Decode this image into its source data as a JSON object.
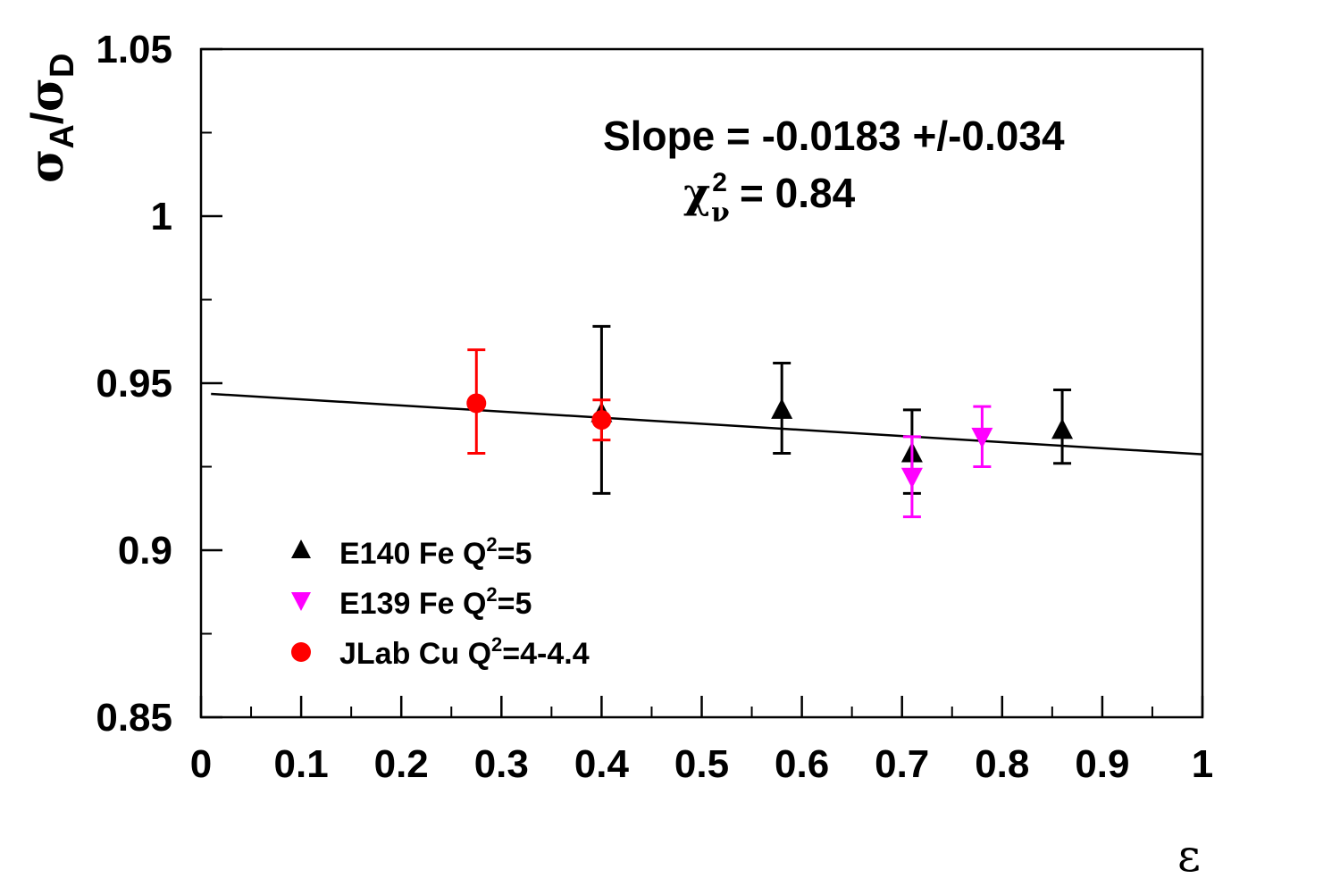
{
  "chart_data": {
    "type": "scatter",
    "xlabel": "ε",
    "ylabel": {
      "sigma": "σ",
      "sub_a": "A",
      "slash": "/",
      "sub_d": "D"
    },
    "xlim": [
      0,
      1
    ],
    "ylim": [
      0.85,
      1.05
    ],
    "x_ticks": [
      0,
      0.1,
      0.2,
      0.3,
      0.4,
      0.5,
      0.6,
      0.7,
      0.8,
      0.9,
      1
    ],
    "x_tick_labels": [
      "0",
      "0.1",
      "0.2",
      "0.3",
      "0.4",
      "0.5",
      "0.6",
      "0.7",
      "0.8",
      "0.9",
      "1"
    ],
    "y_ticks": [
      0.85,
      0.9,
      0.95,
      1,
      1.05
    ],
    "y_tick_labels": [
      "0.85",
      "0.9",
      "0.95",
      "1",
      "1.05"
    ],
    "y_minor_ticks": [
      0.875,
      0.925,
      0.975,
      1.025
    ],
    "grid": false,
    "legend_position": "bottom-left",
    "annotations": {
      "slope": "Slope = -0.0183 +/-0.034",
      "chi_symbol": "χ",
      "chi_sup": "2",
      "chi_sub": "ν",
      "chi_value": "=  0.84"
    },
    "fit_line": {
      "x": [
        0.01,
        1.0
      ],
      "y": [
        0.9468,
        0.9287
      ]
    },
    "series": [
      {
        "name": "E140 Fe Q²=5",
        "label_main": "E140 Fe Q",
        "label_sup": "2",
        "label_tail": "=5",
        "marker": "triangle-up",
        "color": "#000000",
        "points": [
          {
            "x": 0.4,
            "y": 0.941,
            "err_lo": 0.917,
            "err_hi": 0.967
          },
          {
            "x": 0.58,
            "y": 0.942,
            "err_lo": 0.929,
            "err_hi": 0.956
          },
          {
            "x": 0.71,
            "y": 0.929,
            "err_lo": 0.917,
            "err_hi": 0.942
          },
          {
            "x": 0.86,
            "y": 0.936,
            "err_lo": 0.926,
            "err_hi": 0.948
          }
        ]
      },
      {
        "name": "E139 Fe Q²=5",
        "label_main": "E139 Fe Q",
        "label_sup": "2",
        "label_tail": "=5",
        "marker": "triangle-down",
        "color": "#ff00ff",
        "points": [
          {
            "x": 0.71,
            "y": 0.922,
            "err_lo": 0.91,
            "err_hi": 0.934
          },
          {
            "x": 0.78,
            "y": 0.934,
            "err_lo": 0.925,
            "err_hi": 0.943
          }
        ]
      },
      {
        "name": "JLab Cu Q²=4-4.4",
        "label_main": "JLab Cu Q",
        "label_sup": "2",
        "label_tail": "=4-4.4",
        "marker": "circle",
        "color": "#ff0000",
        "points": [
          {
            "x": 0.275,
            "y": 0.944,
            "err_lo": 0.929,
            "err_hi": 0.96
          },
          {
            "x": 0.4,
            "y": 0.939,
            "err_lo": 0.933,
            "err_hi": 0.945
          }
        ]
      }
    ]
  }
}
